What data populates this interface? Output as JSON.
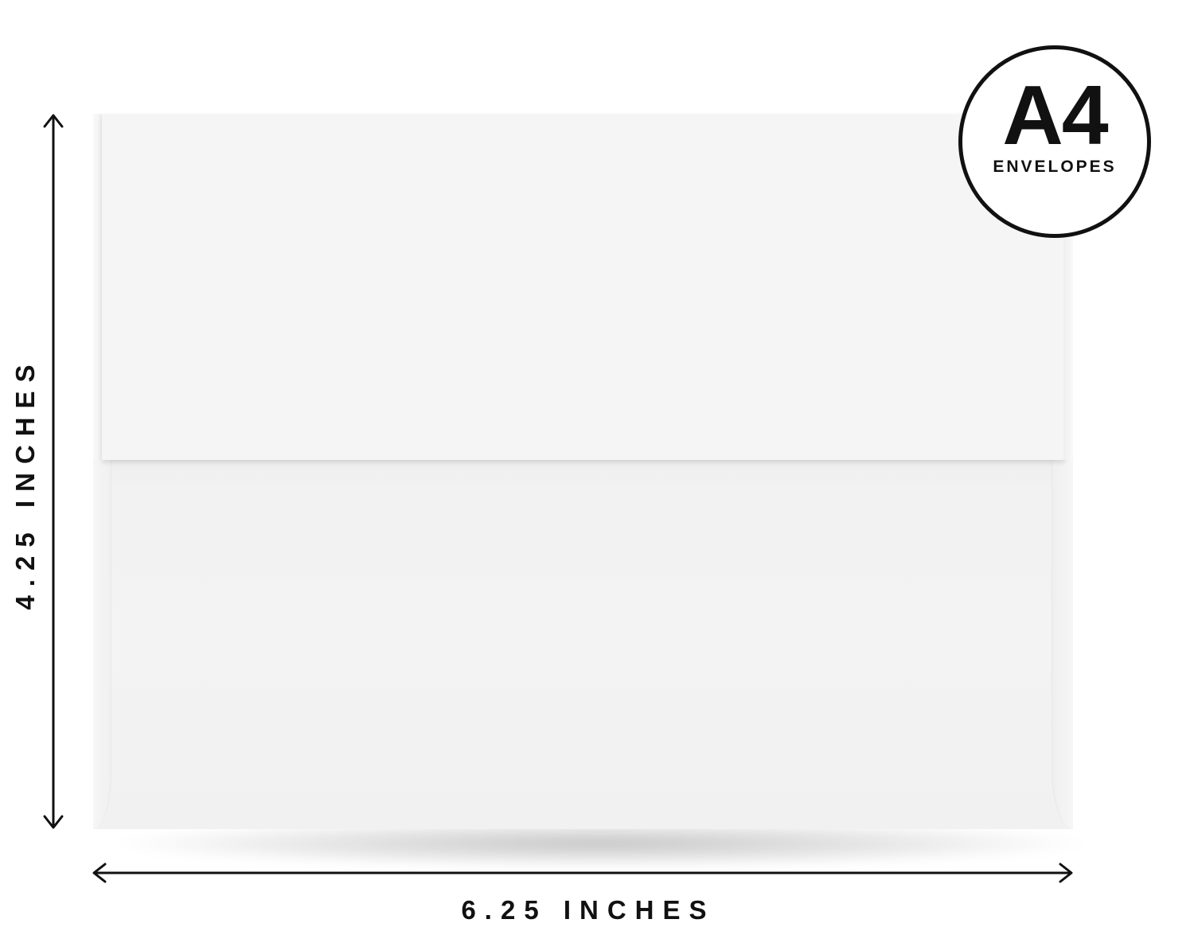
{
  "badge": {
    "size": "A4",
    "caption": "ENVELOPES"
  },
  "dimensions": {
    "height_label": "4.25 INCHES",
    "width_label": "6.25 INCHES"
  },
  "colors": {
    "text": "#111111",
    "envelope": "#f4f4f4",
    "background": "#ffffff"
  },
  "icons": {
    "height_arrow": "vertical-double-arrow",
    "width_arrow": "horizontal-double-arrow"
  }
}
